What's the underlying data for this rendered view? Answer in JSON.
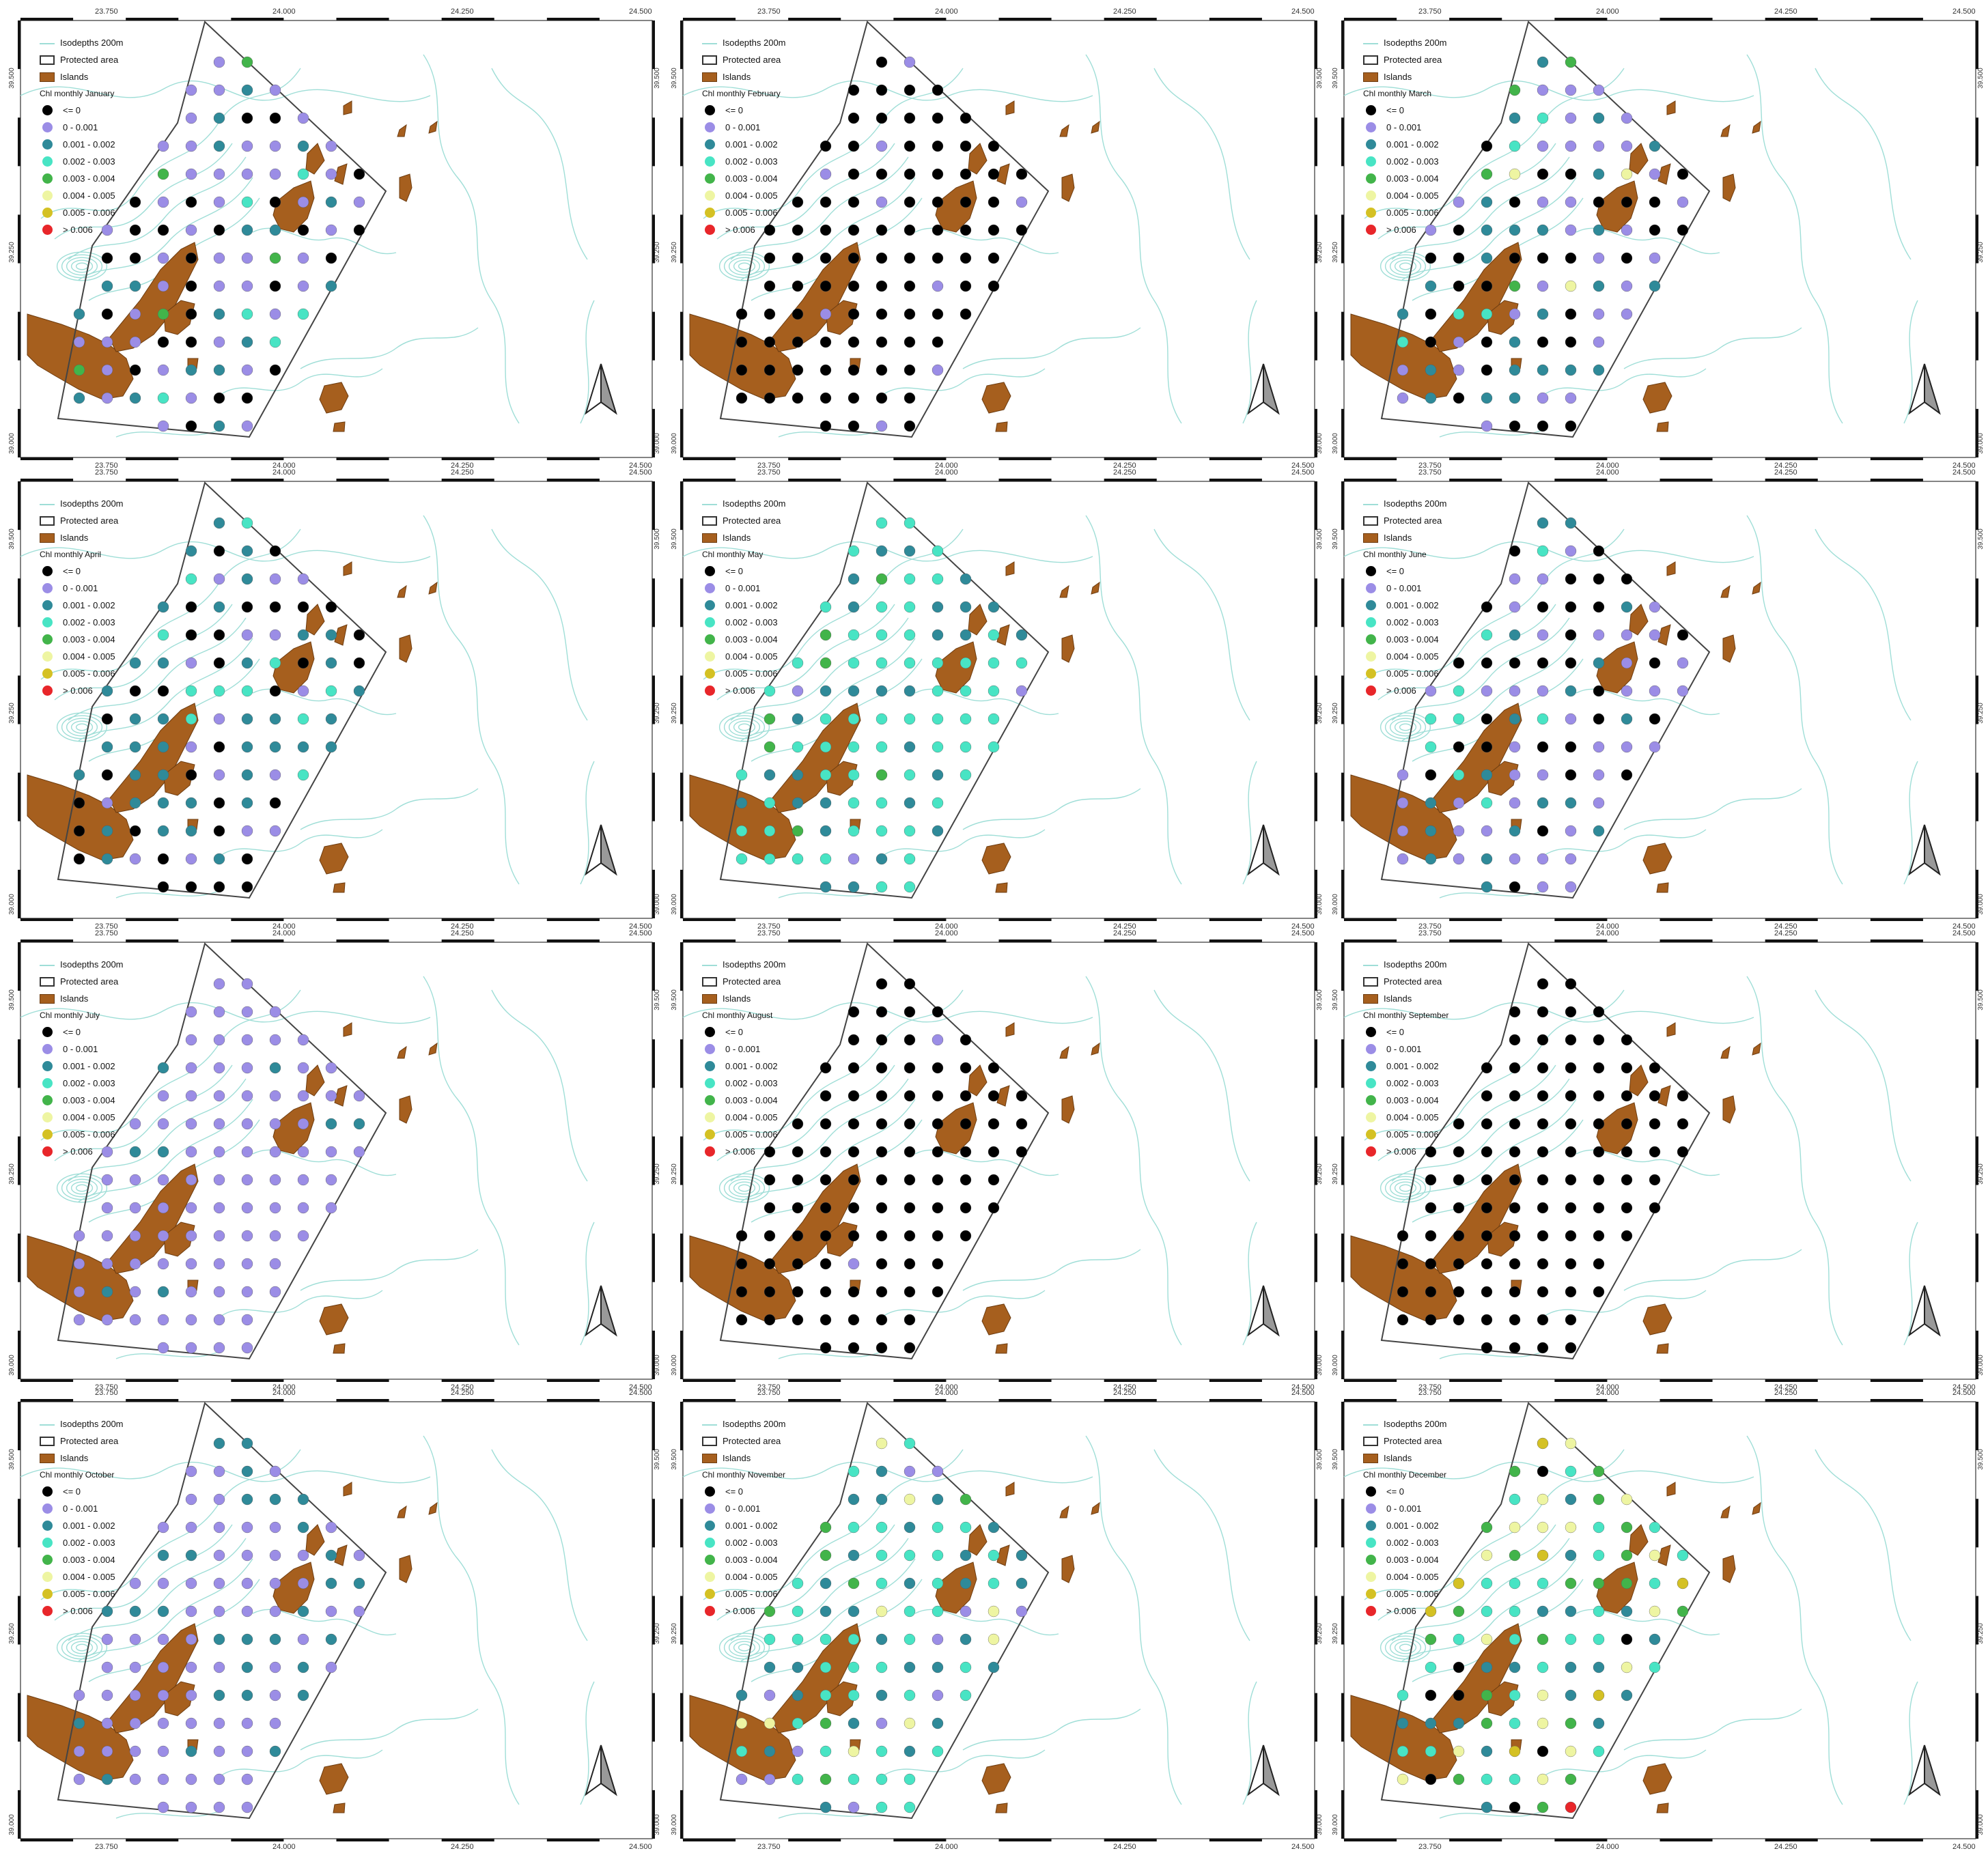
{
  "legend": {
    "isodepths": "Isodepths 200m",
    "protected": "Protected area",
    "islands": "Islands",
    "classes": [
      {
        "label": "<= 0",
        "color": "#000000"
      },
      {
        "label": "0 - 0.001",
        "color": "#9b8de6"
      },
      {
        "label": "0.001 - 0.002",
        "color": "#2f8a99"
      },
      {
        "label": "0.002 - 0.003",
        "color": "#48e4c4"
      },
      {
        "label": "0.003 - 0.004",
        "color": "#42b44a"
      },
      {
        "label": "0.004 - 0.005",
        "color": "#eef5a2"
      },
      {
        "label": "0.005 - 0.006",
        "color": "#d4c124"
      },
      {
        "label": "> 0.006",
        "color": "#e8262a"
      }
    ]
  },
  "x_ticks": [
    "23.750",
    "24.000",
    "24.250",
    "24.500"
  ],
  "y_ticks": [
    "39.000",
    "39.250",
    "39.500"
  ],
  "months": [
    {
      "title": "Chl monthly January",
      "class_weights": [
        0.32,
        0.38,
        0.2,
        0.06,
        0.03,
        0.01,
        0,
        0
      ]
    },
    {
      "title": "Chl monthly February",
      "class_weights": [
        0.93,
        0.07,
        0,
        0,
        0,
        0,
        0,
        0
      ]
    },
    {
      "title": "Chl monthly March",
      "class_weights": [
        0.25,
        0.38,
        0.25,
        0.05,
        0.05,
        0.02,
        0,
        0
      ]
    },
    {
      "title": "Chl monthly April",
      "class_weights": [
        0.3,
        0.22,
        0.4,
        0.08,
        0,
        0,
        0,
        0
      ]
    },
    {
      "title": "Chl monthly May",
      "class_weights": [
        0,
        0.03,
        0.35,
        0.55,
        0.07,
        0,
        0,
        0
      ]
    },
    {
      "title": "Chl monthly June",
      "class_weights": [
        0.25,
        0.45,
        0.22,
        0.08,
        0,
        0,
        0,
        0
      ]
    },
    {
      "title": "Chl monthly July",
      "class_weights": [
        0,
        0.92,
        0.08,
        0,
        0,
        0,
        0,
        0
      ]
    },
    {
      "title": "Chl monthly August",
      "class_weights": [
        0.96,
        0.04,
        0,
        0,
        0,
        0,
        0,
        0
      ]
    },
    {
      "title": "Chl monthly September",
      "class_weights": [
        0.99,
        0.01,
        0,
        0,
        0,
        0,
        0,
        0
      ]
    },
    {
      "title": "Chl monthly October",
      "class_weights": [
        0,
        0.7,
        0.3,
        0,
        0,
        0,
        0,
        0
      ]
    },
    {
      "title": "Chl monthly November",
      "class_weights": [
        0,
        0.1,
        0.35,
        0.38,
        0.07,
        0.1,
        0,
        0
      ]
    },
    {
      "title": "Chl monthly December",
      "class_weights": [
        0.07,
        0,
        0.15,
        0.25,
        0.25,
        0.2,
        0.06,
        0.02
      ]
    }
  ]
}
